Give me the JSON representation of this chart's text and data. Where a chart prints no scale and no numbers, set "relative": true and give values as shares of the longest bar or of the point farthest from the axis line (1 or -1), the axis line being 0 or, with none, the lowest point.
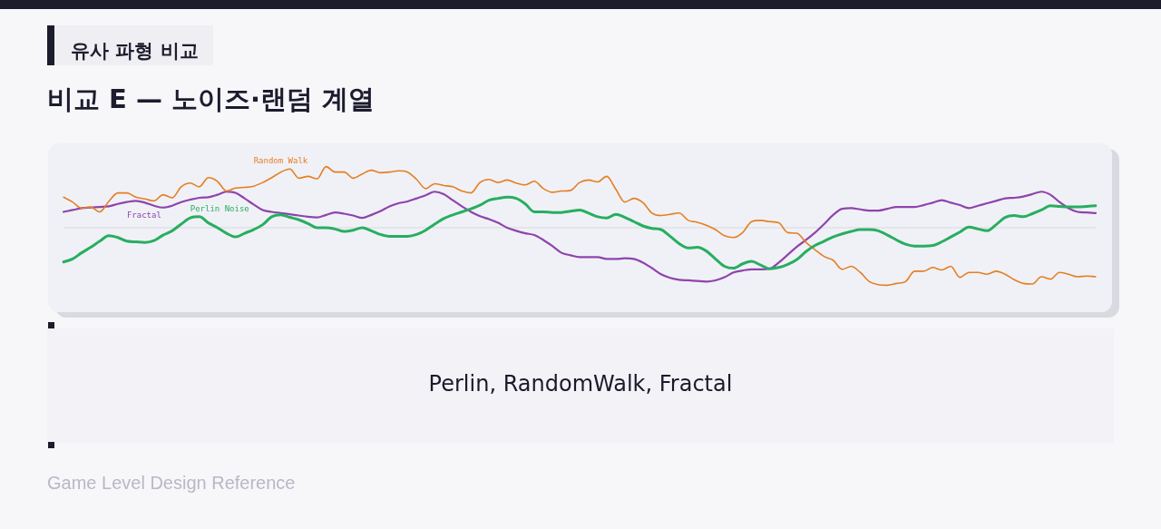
{
  "chart_data": {
    "type": "line",
    "relative": true,
    "title": "비교 E — 노이즈·랜덤 계열",
    "subtitle": "유사 파형 비교",
    "annotations": [
      "Perlin, RandomWalk, Fractal",
      "Game Level Design Reference"
    ],
    "categories": [
      null,
      null,
      null,
      null,
      null,
      null,
      null,
      null,
      null,
      null,
      null,
      null,
      null,
      null,
      null,
      null,
      null,
      null,
      null,
      null,
      null,
      null,
      null,
      null,
      null,
      null,
      null,
      null,
      null,
      null,
      null,
      null,
      null,
      null,
      null,
      null,
      null,
      null,
      null,
      null,
      null,
      null,
      null,
      null,
      null,
      null,
      null,
      null,
      null,
      null,
      null,
      null,
      null,
      null,
      null,
      null,
      null,
      null,
      null,
      null,
      null,
      null,
      null,
      null,
      null,
      null,
      null,
      null,
      null,
      null,
      null,
      null,
      null,
      null,
      null,
      null,
      null,
      null,
      null,
      null,
      null,
      null,
      null,
      null,
      null,
      null,
      null,
      null,
      null,
      null,
      null,
      null,
      null,
      null,
      null,
      null,
      null,
      null,
      null,
      null,
      null,
      null,
      null,
      null,
      null,
      null,
      null,
      null,
      null,
      null,
      null,
      null,
      null,
      null,
      null
    ],
    "series": [
      {
        "name": "Perlin Noise",
        "color": "#27ae60",
        "values": [
          -0.56,
          -0.51,
          -0.41,
          -0.32,
          -0.22,
          -0.13,
          -0.16,
          -0.22,
          -0.23,
          -0.24,
          -0.21,
          -0.12,
          -0.05,
          0.06,
          0.16,
          0.18,
          0.08,
          0,
          -0.09,
          -0.15,
          -0.09,
          -0.03,
          0.05,
          0.18,
          0.21,
          0.17,
          0.13,
          0.07,
          0,
          0,
          -0.02,
          -0.06,
          -0.04,
          0,
          -0.05,
          -0.11,
          -0.14,
          -0.14,
          -0.14,
          -0.11,
          -0.04,
          0.06,
          0.15,
          0.21,
          0.26,
          0.31,
          0.37,
          0.45,
          0.48,
          0.5,
          0.48,
          0.39,
          0.26,
          0.26,
          0.25,
          0.25,
          0.27,
          0.29,
          0.24,
          0.18,
          0.16,
          0.22,
          0.17,
          0.1,
          0.03,
          -0.01,
          -0.03,
          -0.14,
          -0.26,
          -0.33,
          -0.32,
          -0.38,
          -0.51,
          -0.63,
          -0.66,
          -0.59,
          -0.55,
          -0.61,
          -0.67,
          -0.65,
          -0.6,
          -0.52,
          -0.39,
          -0.29,
          -0.22,
          -0.15,
          -0.1,
          -0.06,
          -0.03,
          -0.03,
          -0.05,
          -0.12,
          -0.2,
          -0.27,
          -0.3,
          -0.3,
          -0.29,
          -0.23,
          -0.15,
          -0.07,
          0.01,
          -0.02,
          -0.05,
          0.05,
          0.17,
          0.2,
          0.18,
          0.23,
          0.29,
          0.36,
          0.35,
          0.34,
          0.34,
          0.35,
          0.36
        ]
      },
      {
        "name": "Random Walk",
        "color": "#e67e22",
        "values": [
          0.5,
          0.42,
          0.32,
          0.34,
          0.26,
          0.43,
          0.57,
          0.57,
          0.5,
          0.47,
          0.44,
          0.54,
          0.49,
          0.67,
          0.73,
          0.67,
          0.82,
          0.76,
          0.6,
          0.65,
          0.66,
          0.68,
          0.74,
          0.82,
          0.91,
          0.96,
          0.81,
          0.84,
          0.8,
          1,
          0.91,
          0.91,
          0.81,
          0.88,
          0.94,
          0.9,
          0.91,
          0.93,
          0.91,
          0.79,
          0.64,
          0.72,
          0.69,
          0.67,
          0.6,
          0.57,
          0.74,
          0.79,
          0.74,
          0.78,
          0.73,
          0.7,
          0.76,
          0.64,
          0.58,
          0.6,
          0.61,
          0.74,
          0.78,
          0.75,
          0.84,
          0.63,
          0.42,
          0.48,
          0.41,
          0.24,
          0.2,
          0.22,
          0.24,
          0.12,
          0.09,
          0.04,
          -0.03,
          -0.13,
          -0.16,
          -0.08,
          0.1,
          0.12,
          0.1,
          0.08,
          -0.08,
          -0.09,
          -0.24,
          -0.36,
          -0.47,
          -0.53,
          -0.68,
          -0.63,
          -0.73,
          -0.88,
          -0.93,
          -0.94,
          -0.91,
          -0.88,
          -0.71,
          -0.71,
          -0.65,
          -0.69,
          -0.63,
          -0.81,
          -0.73,
          -0.73,
          -0.76,
          -0.71,
          -0.76,
          -0.85,
          -0.91,
          -0.92,
          -0.8,
          -0.84,
          -0.73,
          -0.76,
          -0.8,
          -0.79,
          -0.8
        ]
      },
      {
        "name": "Fractal",
        "color": "#8e44ad",
        "values": [
          0.26,
          0.29,
          0.32,
          0.33,
          0.34,
          0.35,
          0.39,
          0.42,
          0.44,
          0.41,
          0.36,
          0.33,
          0.36,
          0.42,
          0.46,
          0.49,
          0.5,
          0.54,
          0.59,
          0.57,
          0.48,
          0.38,
          0.29,
          0.26,
          0.24,
          0.22,
          0.2,
          0.18,
          0.17,
          0.21,
          0.25,
          0.23,
          0.2,
          0.16,
          0.21,
          0.27,
          0.35,
          0.4,
          0.43,
          0.48,
          0.53,
          0.59,
          0.55,
          0.45,
          0.35,
          0.26,
          0.19,
          0.14,
          0.08,
          0,
          -0.05,
          -0.09,
          -0.12,
          -0.2,
          -0.3,
          -0.41,
          -0.45,
          -0.48,
          -0.48,
          -0.48,
          -0.51,
          -0.51,
          -0.5,
          -0.51,
          -0.57,
          -0.66,
          -0.76,
          -0.82,
          -0.85,
          -0.86,
          -0.87,
          -0.88,
          -0.86,
          -0.81,
          -0.73,
          -0.7,
          -0.68,
          -0.68,
          -0.67,
          -0.57,
          -0.44,
          -0.31,
          -0.2,
          -0.08,
          0.06,
          0.21,
          0.31,
          0.32,
          0.3,
          0.28,
          0.28,
          0.31,
          0.34,
          0.34,
          0.34,
          0.37,
          0.41,
          0.45,
          0.41,
          0.37,
          0.32,
          0.36,
          0.4,
          0.44,
          0.48,
          0.49,
          0.51,
          0.55,
          0.59,
          0.54,
          0.42,
          0.32,
          0.26,
          0.25,
          0.24
        ]
      }
    ]
  }
}
